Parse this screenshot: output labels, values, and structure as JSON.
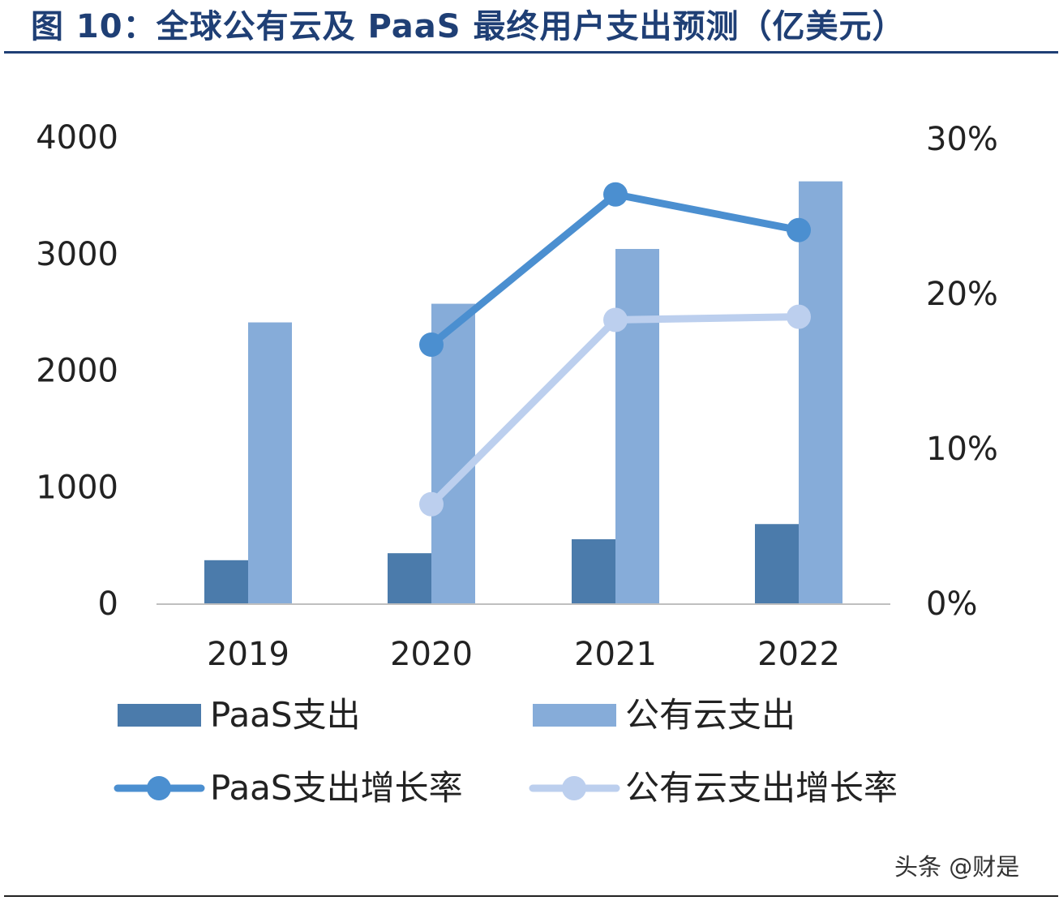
{
  "chart_data": {
    "type": "bar",
    "title": "图 10：全球公有云及 PaaS 最终用户支出预测（亿美元）",
    "categories": [
      "2019",
      "2020",
      "2021",
      "2022"
    ],
    "y_left": {
      "ylim": [
        0,
        4000
      ],
      "ticks": [
        "0",
        "1000",
        "2000",
        "3000",
        "4000"
      ]
    },
    "y_right": {
      "ylim": [
        0,
        0.3
      ],
      "ticks": [
        "0%",
        "10%",
        "20%",
        "30%"
      ]
    },
    "series": [
      {
        "name": "PaaS支出",
        "kind": "bar",
        "axis": "left",
        "color": "#4b7bab",
        "values": [
          370,
          430,
          550,
          680
        ]
      },
      {
        "name": "公有云支出",
        "kind": "bar",
        "axis": "left",
        "color": "#86acd9",
        "values": [
          2410,
          2570,
          3040,
          3620
        ]
      },
      {
        "name": "PaaS支出增长率",
        "kind": "line",
        "axis": "right",
        "color": "#4b8fd0",
        "values": [
          null,
          0.167,
          0.264,
          0.241
        ]
      },
      {
        "name": "公有云支出增长率",
        "kind": "line",
        "axis": "right",
        "color": "#bccfee",
        "values": [
          null,
          0.064,
          0.183,
          0.185
        ]
      }
    ],
    "legend": "bottom",
    "grid": false
  },
  "watermark": "头条 @财是"
}
